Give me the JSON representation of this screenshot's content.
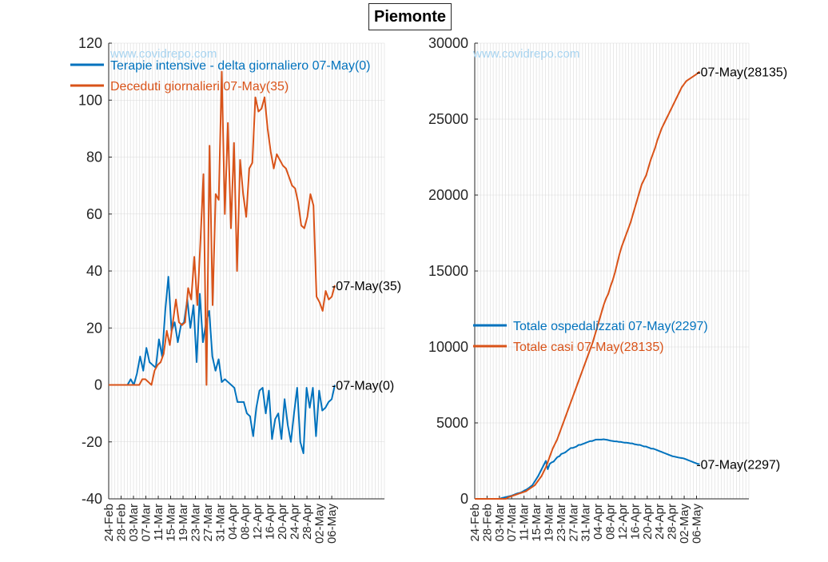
{
  "title": "Piemonte",
  "watermark": "www.covidrepo.com",
  "colors": {
    "blue": "#0072BD",
    "orange": "#D95319",
    "grid": "#d9d9d9",
    "axis": "#262626"
  },
  "chart_data": [
    {
      "type": "line",
      "grid": true,
      "legend_position": "top-left",
      "x_start_date": "2020-02-24",
      "x_tick_labels": [
        "24-Feb",
        "28-Feb",
        "03-Mar",
        "07-Mar",
        "11-Mar",
        "15-Mar",
        "19-Mar",
        "23-Mar",
        "27-Mar",
        "31-Mar",
        "04-Apr",
        "08-Apr",
        "12-Apr",
        "16-Apr",
        "20-Apr",
        "24-Apr",
        "28-Apr",
        "02-May",
        "06-May"
      ],
      "ylim": [
        -40,
        120
      ],
      "y_ticks": [
        -40,
        -20,
        0,
        20,
        40,
        60,
        80,
        100,
        120
      ],
      "series": [
        {
          "name": "Terapie intensive - delta giornaliero 07-May(0)",
          "color": "#0072BD",
          "end_label": "-07-May(0)",
          "values": [
            0,
            0,
            0,
            0,
            0,
            0,
            0,
            2,
            0,
            4,
            10,
            5,
            13,
            8,
            7,
            6,
            16,
            10,
            26,
            38,
            19,
            22,
            15,
            21,
            22,
            30,
            20,
            28,
            8,
            32,
            15,
            22,
            26,
            10,
            5,
            9,
            1,
            2,
            1,
            0,
            -1,
            -6,
            -6,
            -6,
            -10,
            -11,
            -18,
            -8,
            -2,
            -1,
            -10,
            -2,
            -19,
            -12,
            -10,
            -19,
            -5,
            -14,
            -20,
            -10,
            -1,
            -20,
            -24,
            -1,
            -8,
            -1,
            -18,
            -2,
            -9,
            -8,
            -6,
            -5,
            0
          ]
        },
        {
          "name": "Deceduti giornalieri 07-May(35)",
          "color": "#D95319",
          "end_label": "-07-May(35)",
          "values": [
            0,
            0,
            0,
            0,
            0,
            0,
            0,
            0,
            0,
            0,
            0,
            2,
            2,
            1,
            0,
            5,
            7,
            8,
            11,
            19,
            14,
            22,
            30,
            22,
            21,
            22,
            34,
            30,
            45,
            28,
            50,
            74,
            0,
            84,
            28,
            67,
            65,
            110,
            60,
            92,
            55,
            85,
            40,
            79,
            67,
            59,
            76,
            78,
            101,
            96,
            97,
            101,
            90,
            82,
            76,
            81,
            79,
            77,
            76,
            73,
            70,
            69,
            64,
            56,
            55,
            59,
            67,
            63,
            31,
            29,
            26,
            33,
            30,
            31,
            35
          ]
        }
      ]
    },
    {
      "type": "line",
      "grid": true,
      "legend_position": "center-left",
      "x_start_date": "2020-02-24",
      "x_tick_labels": [
        "24-Feb",
        "28-Feb",
        "03-Mar",
        "07-Mar",
        "11-Mar",
        "15-Mar",
        "19-Mar",
        "23-Mar",
        "27-Mar",
        "31-Mar",
        "04-Apr",
        "08-Apr",
        "12-Apr",
        "16-Apr",
        "20-Apr",
        "24-Apr",
        "28-Apr",
        "02-May",
        "06-May"
      ],
      "ylim": [
        0,
        30000
      ],
      "y_ticks": [
        0,
        5000,
        10000,
        15000,
        20000,
        25000,
        30000
      ],
      "series": [
        {
          "name": "Totale ospedalizzati 07-May(2297)",
          "color": "#0072BD",
          "end_label": "-07-May(2297)",
          "values": [
            0,
            0,
            0,
            0,
            0,
            0,
            0,
            0,
            0,
            0,
            0,
            0,
            0,
            0,
            50,
            80,
            110,
            140,
            170,
            200,
            250,
            300,
            350,
            380,
            420,
            480,
            560,
            620,
            700,
            800,
            900,
            1100,
            1300,
            1500,
            1750,
            2000,
            2250,
            2500,
            1950,
            2300,
            2400,
            2450,
            2600,
            2750,
            2800,
            2950,
            3000,
            3050,
            3150,
            3250,
            3350,
            3350,
            3400,
            3450,
            3550,
            3550,
            3600,
            3650,
            3700,
            3750,
            3800,
            3800,
            3850,
            3900,
            3900,
            3900,
            3900,
            3920,
            3900,
            3880,
            3850,
            3820,
            3800,
            3780,
            3780,
            3750,
            3750,
            3720,
            3700,
            3700,
            3680,
            3650,
            3650,
            3600,
            3580,
            3550,
            3550,
            3500,
            3450,
            3450,
            3400,
            3350,
            3300,
            3300,
            3250,
            3200,
            3150,
            3100,
            3050,
            3000,
            2950,
            2900,
            2850,
            2800,
            2780,
            2750,
            2720,
            2700,
            2680,
            2650,
            2600,
            2550,
            2500,
            2450,
            2400,
            2350,
            2300,
            2297
          ]
        },
        {
          "name": "Totale casi 07-May(28135)",
          "color": "#D95319",
          "end_label": "-07-May(28135)",
          "values": [
            0,
            0,
            0,
            0,
            0,
            0,
            0,
            0,
            0,
            0,
            0,
            0,
            0,
            0,
            0,
            100,
            150,
            200,
            250,
            300,
            350,
            400,
            450,
            500,
            600,
            700,
            800,
            900,
            1100,
            1300,
            1500,
            1800,
            2100,
            2500,
            2900,
            3300,
            3600,
            3900,
            4300,
            4700,
            5100,
            5500,
            5900,
            6300,
            6700,
            7100,
            7500,
            7900,
            8300,
            8700,
            9100,
            9500,
            9900,
            10300,
            10800,
            11300,
            11800,
            12300,
            12800,
            13200,
            13500,
            14000,
            14400,
            14900,
            15500,
            16100,
            16600,
            17000,
            17400,
            17800,
            18200,
            18700,
            19200,
            19700,
            20200,
            20700,
            21000,
            21300,
            21800,
            22300,
            22700,
            23100,
            23600,
            24000,
            24400,
            24700,
            25000,
            25300,
            25600,
            25900,
            26200,
            26500,
            26800,
            27100,
            27300,
            27500,
            27600,
            27700,
            27800,
            27900,
            28000,
            28135
          ]
        }
      ]
    }
  ]
}
